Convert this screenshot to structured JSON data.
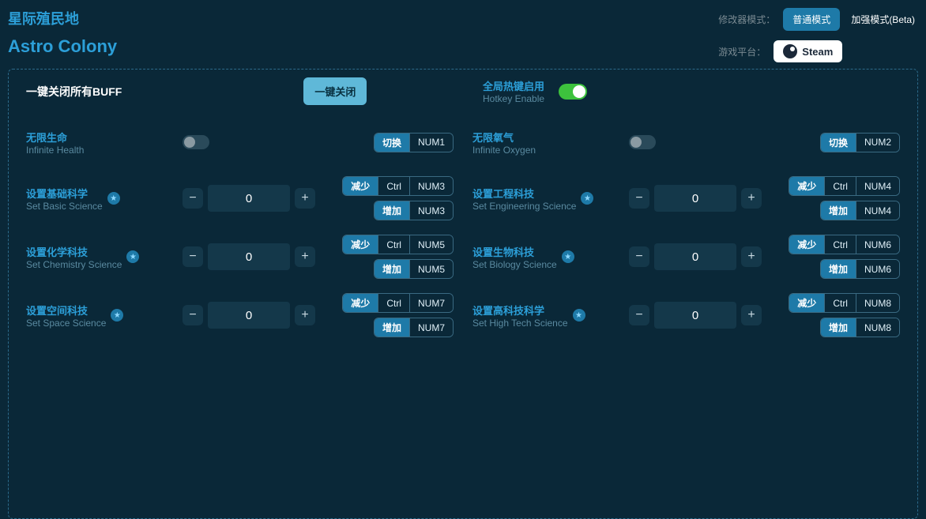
{
  "title": {
    "zh": "星际殖民地",
    "en": "Astro Colony"
  },
  "header": {
    "mode_label": "修改器模式：",
    "mode_normal": "普通模式",
    "mode_enhanced": "加强模式(Beta)",
    "platform_label": "游戏平台：",
    "steam": "Steam"
  },
  "buff": {
    "label": "一键关闭所有BUFF",
    "button": "一键关闭"
  },
  "hotkey": {
    "zh": "全局热键启用",
    "en": "Hotkey Enable"
  },
  "btn": {
    "toggle": "切换",
    "dec": "减少",
    "inc": "增加",
    "ctrl": "Ctrl"
  },
  "left": [
    {
      "zh": "无限生命",
      "en": "Infinite Health",
      "type": "toggle",
      "key": "NUM1"
    },
    {
      "zh": "设置基础科学",
      "en": "Set Basic Science",
      "type": "num",
      "val": "0",
      "kd": "NUM3",
      "ki": "NUM3"
    },
    {
      "zh": "设置化学科技",
      "en": "Set Chemistry Science",
      "type": "num",
      "val": "0",
      "kd": "NUM5",
      "ki": "NUM5"
    },
    {
      "zh": "设置空间科技",
      "en": "Set Space Science",
      "type": "num",
      "val": "0",
      "kd": "NUM7",
      "ki": "NUM7"
    }
  ],
  "right": [
    {
      "zh": "无限氧气",
      "en": "Infinite Oxygen",
      "type": "toggle",
      "key": "NUM2"
    },
    {
      "zh": "设置工程科技",
      "en": "Set Engineering Science",
      "type": "num",
      "val": "0",
      "kd": "NUM4",
      "ki": "NUM4"
    },
    {
      "zh": "设置生物科技",
      "en": "Set Biology Science",
      "type": "num",
      "val": "0",
      "kd": "NUM6",
      "ki": "NUM6"
    },
    {
      "zh": "设置高科技科学",
      "en": "Set High Tech Science",
      "type": "num",
      "val": "0",
      "kd": "NUM8",
      "ki": "NUM8"
    }
  ]
}
